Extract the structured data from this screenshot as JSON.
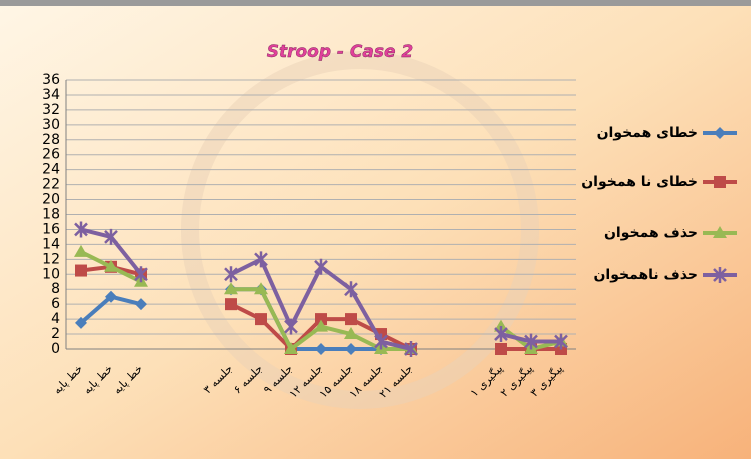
{
  "chart_data": {
    "type": "line",
    "title": "Stroop - Case 2",
    "categories": [
      "خط پایه",
      "خط پایه",
      "خط پایه",
      null,
      null,
      "جلسه ۳",
      "جلسه ۶",
      "جلسه ۹",
      "جلسه ۱۲",
      "جلسه ۱۵",
      "جلسه ۱۸",
      "جلسه ۲۱",
      null,
      null,
      "پیگیری ۱",
      "پیگیری ۲",
      "پیگیری ۳"
    ],
    "series": [
      {
        "name": "خطای همخوان",
        "color": "#4a7ebb",
        "marker": "diamond",
        "values": [
          3.5,
          7,
          6,
          null,
          null,
          8,
          8,
          0,
          0,
          0,
          0,
          0,
          null,
          null,
          0,
          0,
          0
        ]
      },
      {
        "name": "خطای نا همخوان",
        "color": "#be4b48",
        "marker": "square",
        "values": [
          10.5,
          11,
          10,
          null,
          null,
          6,
          4,
          0,
          4,
          4,
          2,
          0,
          null,
          null,
          0,
          0,
          0
        ]
      },
      {
        "name": "حذف همخوان",
        "color": "#98b954",
        "marker": "triangle",
        "values": [
          13,
          11,
          9,
          null,
          null,
          8,
          8,
          0,
          3,
          2,
          0,
          0,
          null,
          null,
          3,
          0,
          1
        ]
      },
      {
        "name": "حذف ناهمخوان",
        "color": "#7d60a0",
        "marker": "star",
        "values": [
          16,
          15,
          10,
          null,
          null,
          10,
          12,
          3,
          11,
          8,
          1,
          0,
          null,
          null,
          2,
          1,
          1
        ]
      }
    ],
    "ylim": [
      0,
      36
    ],
    "yticks": [
      0,
      2,
      4,
      6,
      8,
      10,
      12,
      14,
      16,
      18,
      20,
      22,
      24,
      26,
      28,
      30,
      32,
      34,
      36
    ],
    "grid": true,
    "legend": "right"
  }
}
